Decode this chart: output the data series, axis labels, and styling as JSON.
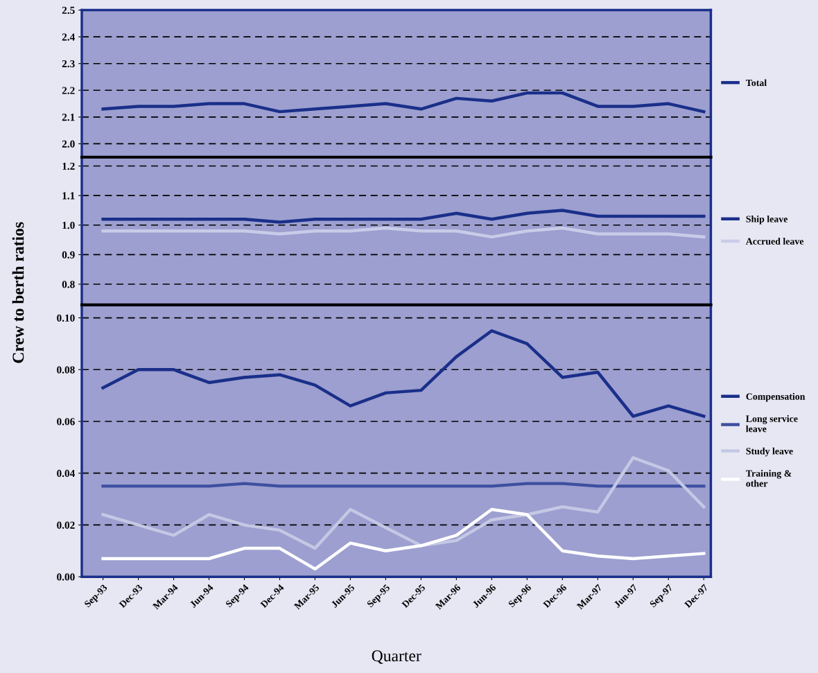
{
  "chart_data": [
    {
      "type": "line",
      "ylim": [
        1.95,
        2.5
      ],
      "yticks": [
        {
          "value": 2,
          "label": "2.0"
        },
        2.1,
        2.2,
        2.3,
        2.4,
        2.5
      ],
      "grid": "y",
      "legend": "right",
      "tick_labels": "y",
      "series": [
        {
          "name": "Total",
          "color": "#1a2f8a",
          "values": [
            2.13,
            2.14,
            2.14,
            2.15,
            2.15,
            2.12,
            2.13,
            2.14,
            2.15,
            2.13,
            2.17,
            2.16,
            2.19,
            2.19,
            2.14,
            2.14,
            2.15,
            2.12
          ]
        }
      ]
    },
    {
      "type": "line",
      "ylim": [
        0.73,
        1.23
      ],
      "yticks": [
        0.8,
        0.9,
        {
          "value": 1,
          "label": "1.0"
        },
        1.1,
        1.2
      ],
      "grid": "y",
      "legend": "right",
      "tick_labels": "y",
      "ylabel": "Crew to berth ratios",
      "series": [
        {
          "name": "Ship leave",
          "color": "#1a2f8a",
          "values": [
            1.02,
            1.02,
            1.02,
            1.02,
            1.02,
            1.01,
            1.02,
            1.02,
            1.02,
            1.02,
            1.04,
            1.02,
            1.04,
            1.05,
            1.03,
            1.03,
            1.03,
            1.03
          ]
        },
        {
          "name": "Accrued leave",
          "color": "#c8cce8",
          "values": [
            0.98,
            0.98,
            0.98,
            0.98,
            0.98,
            0.97,
            0.98,
            0.98,
            0.99,
            0.98,
            0.98,
            0.96,
            0.98,
            0.99,
            0.97,
            0.97,
            0.97,
            0.96
          ]
        }
      ]
    },
    {
      "type": "line",
      "categories": [
        "Sep-93",
        "Dec-93",
        "Mar-94",
        "Jun-94",
        "Sep-94",
        "Dec-94",
        "Mar-95",
        "Jun-95",
        "Sep-95",
        "Dec-95",
        "Mar-96",
        "Jun-96",
        "Sep-96",
        "Dec-96",
        "Mar-97",
        "Jun-97",
        "Sep-97",
        "Dec-97"
      ],
      "ylim": [
        0,
        0.105
      ],
      "yticks": [
        {
          "value": 0,
          "label": "0.00"
        },
        0.02,
        0.04,
        0.06,
        0.08,
        {
          "value": 0.1,
          "label": "0.10"
        }
      ],
      "grid": "y",
      "legend": "right",
      "xlabel": "Quarter",
      "series": [
        {
          "name": "Compensation",
          "color": "#1a2f8a",
          "values": [
            0.073,
            0.08,
            0.08,
            0.075,
            0.077,
            0.078,
            0.074,
            0.066,
            0.071,
            0.072,
            0.085,
            0.095,
            0.09,
            0.077,
            0.079,
            0.062,
            0.066,
            0.062
          ]
        },
        {
          "name": "Long service leave",
          "color": "#3d4fa0",
          "values": [
            0.035,
            0.035,
            0.035,
            0.035,
            0.036,
            0.035,
            0.035,
            0.035,
            0.035,
            0.035,
            0.035,
            0.035,
            0.036,
            0.036,
            0.035,
            0.035,
            0.035,
            0.035
          ]
        },
        {
          "name": "Study leave",
          "color": "#c4c8e4",
          "values": [
            0.024,
            0.02,
            0.016,
            0.024,
            0.02,
            0.018,
            0.011,
            0.026,
            0.019,
            0.012,
            0.014,
            0.022,
            0.024,
            0.027,
            0.025,
            0.046,
            0.041,
            0.027
          ]
        },
        {
          "name": "Training & other",
          "color": "#ffffff",
          "values": [
            0.007,
            0.007,
            0.007,
            0.007,
            0.011,
            0.011,
            0.003,
            0.013,
            0.01,
            0.012,
            0.016,
            0.026,
            0.024,
            0.01,
            0.008,
            0.007,
            0.008,
            0.009
          ]
        }
      ]
    }
  ]
}
